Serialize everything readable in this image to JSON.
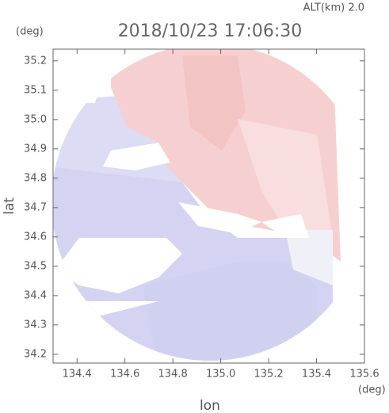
{
  "chart_data": {
    "type": "image",
    "title": "2018/10/23 17:06:30",
    "subtitle": "ALT(km) 2.0",
    "y_unit": "(deg)",
    "x_unit": "(deg)",
    "ylabel": "lat",
    "xlabel": "lon",
    "xlim": [
      134.3,
      135.6
    ],
    "ylim": [
      34.17,
      35.24
    ],
    "xticks": [
      134.4,
      134.6,
      134.8,
      {
        "value": 135,
        "label": "135.0"
      },
      135.2,
      135.4,
      135.6
    ],
    "yticks": [
      34.2,
      34.3,
      34.4,
      34.5,
      34.6,
      34.7,
      34.8,
      34.9,
      {
        "value": 35,
        "label": "35.0"
      },
      35.1,
      35.2
    ]
  }
}
